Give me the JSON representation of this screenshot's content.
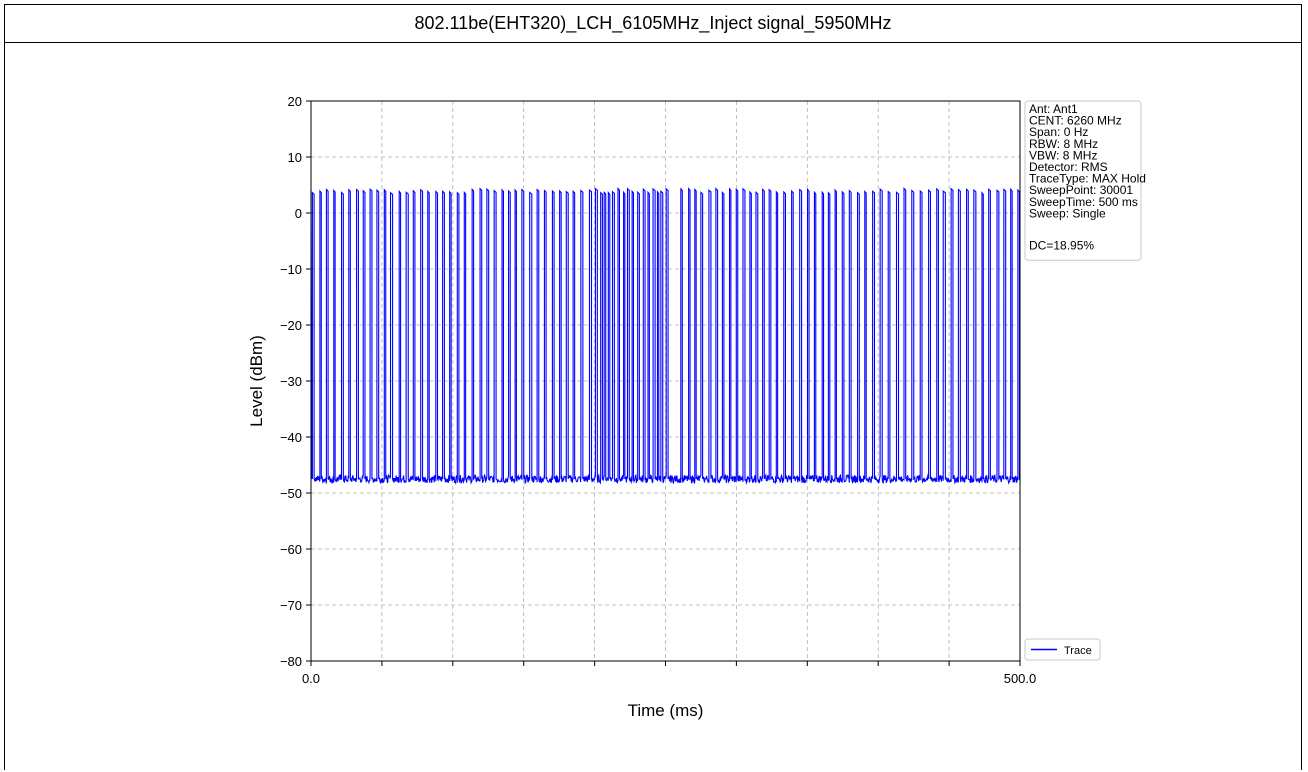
{
  "header": {
    "title": "802.11be(EHT320)_LCH_6105MHz_Inject signal_5950MHz"
  },
  "chart_data": {
    "type": "line",
    "xlabel": "Time (ms)",
    "ylabel": "Level (dBm)",
    "xlim": [
      0.0,
      500.0
    ],
    "ylim": [
      -80,
      20
    ],
    "x_ticks": [
      "0.0",
      "500.0"
    ],
    "y_ticks": [
      20,
      10,
      0,
      -10,
      -20,
      -30,
      -40,
      -50,
      -60,
      -70,
      -80
    ],
    "grid": true,
    "legend_position": "lower-right",
    "series": [
      {
        "name": "Trace",
        "color": "#0000ff",
        "description_values": {
          "noise_floor_dbm": -47.5,
          "burst_peak_dbm": 4.0
        }
      }
    ],
    "info_box": {
      "lines": [
        "Ant: Ant1",
        "CENT: 6260 MHz",
        "Span: 0 Hz",
        "RBW: 8 MHz",
        "VBW: 8 MHz",
        "Detector: RMS",
        "TraceType: MAX Hold",
        "SweepPoint: 30001",
        "SweepTime: 500 ms",
        "Sweep: Single",
        "",
        "DC=18.95%"
      ]
    }
  }
}
